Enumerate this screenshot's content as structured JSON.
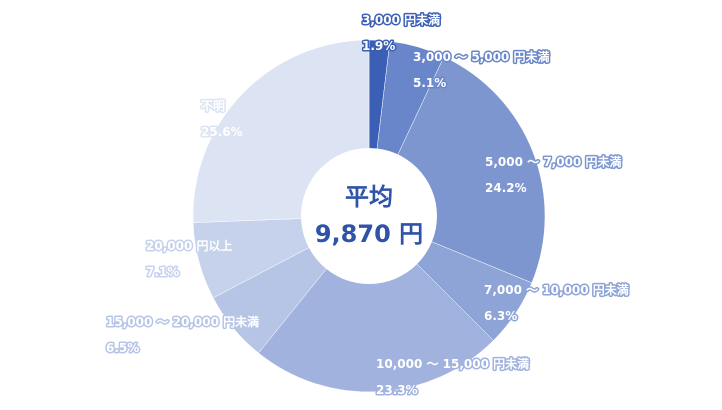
{
  "chart_data": {
    "type": "pie",
    "center": {
      "title": "平均",
      "value": "9,870 円"
    },
    "slices": [
      {
        "label": "3,000 円未満",
        "value": 1.9,
        "value_label": "1.9%",
        "color": "#3a5fb4"
      },
      {
        "label": "3,000 ～ 5,000 円未満",
        "value": 5.1,
        "value_label": "5.1%",
        "color": "#6886c9"
      },
      {
        "label": "5,000 ～ 7,000 円未満",
        "value": 24.2,
        "value_label": "24.2%",
        "color": "#7d96d0"
      },
      {
        "label": "7,000 ～ 10,000 円未満",
        "value": 6.3,
        "value_label": "6.3%",
        "color": "#8ea4d6"
      },
      {
        "label": "10,000 ～ 15,000 円未満",
        "value": 23.3,
        "value_label": "23.3%",
        "color": "#a0b2dd"
      },
      {
        "label": "15,000 ～ 20,000 円未満",
        "value": 6.5,
        "value_label": "6.5%",
        "color": "#b6c4e5"
      },
      {
        "label": "20,000 円以上",
        "value": 7.1,
        "value_label": "7.1%",
        "color": "#c6d1eb"
      },
      {
        "label": "不明",
        "value": 25.6,
        "value_label": "25.6%",
        "color": "#dce3f3"
      }
    ]
  }
}
